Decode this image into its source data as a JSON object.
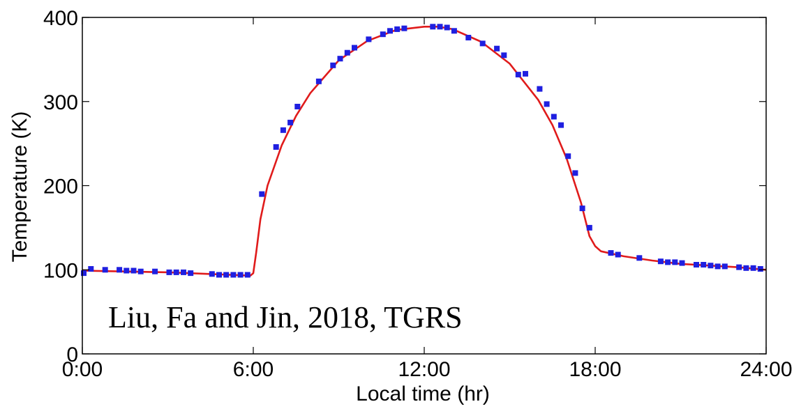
{
  "chart_data": {
    "type": "scatter",
    "xlabel": "Local time (hr)",
    "ylabel": "Temperature (K)",
    "xlim": [
      0,
      24
    ],
    "ylim": [
      0,
      400
    ],
    "xticks": [
      0,
      6,
      12,
      18,
      24
    ],
    "xtick_labels": [
      "0:00",
      "6:00",
      "12:00",
      "18:00",
      "24:00"
    ],
    "yticks": [
      0,
      100,
      200,
      300,
      400
    ],
    "ytick_labels": [
      "0",
      "100",
      "200",
      "300",
      "400"
    ],
    "grid": false,
    "annotation": "Liu, Fa and Jin, 2018, TGRS",
    "colors": {
      "points": "#1f1fe0",
      "line": "#e01b1b"
    },
    "series": [
      {
        "style": "markers",
        "x": [
          0.05,
          0.3,
          0.8,
          1.3,
          1.55,
          1.8,
          2.05,
          2.55,
          3.05,
          3.3,
          3.55,
          3.8,
          4.55,
          4.8,
          5.05,
          5.3,
          5.55,
          5.8,
          6.3,
          6.8,
          7.05,
          7.3,
          7.55,
          8.3,
          8.8,
          9.05,
          9.3,
          9.55,
          10.05,
          10.55,
          10.8,
          11.05,
          11.3,
          12.3,
          12.55,
          12.8,
          13.05,
          13.55,
          14.05,
          14.55,
          14.8,
          15.3,
          15.55,
          16.05,
          16.3,
          16.55,
          16.8,
          17.05,
          17.3,
          17.55,
          17.8,
          18.55,
          18.8,
          19.55,
          20.3,
          20.55,
          20.8,
          21.05,
          21.55,
          21.8,
          22.05,
          22.3,
          22.55,
          23.05,
          23.3,
          23.55,
          23.8
        ],
        "y": [
          96,
          101,
          100,
          100,
          99,
          99,
          98,
          98,
          97,
          97,
          97,
          96,
          95,
          94,
          94,
          94,
          94,
          94,
          190,
          246,
          266,
          275,
          294,
          324,
          343,
          351,
          358,
          364,
          374,
          380,
          384,
          386,
          387,
          389,
          389,
          388,
          384,
          376,
          369,
          363,
          355,
          332,
          333,
          315,
          297,
          282,
          272,
          235,
          215,
          173,
          150,
          120,
          118,
          114,
          110,
          109,
          109,
          108,
          106,
          106,
          105,
          104,
          104,
          103,
          102,
          102,
          101
        ]
      },
      {
        "style": "line",
        "x": [
          0,
          3,
          5.9,
          6.0,
          6.1,
          6.25,
          6.5,
          7,
          7.5,
          8,
          9,
          10,
          11,
          12,
          12.5,
          13,
          14,
          15,
          16,
          16.5,
          17,
          17.5,
          17.8,
          18.0,
          18.2,
          19,
          20,
          21,
          22,
          23,
          24
        ],
        "y": [
          99,
          97,
          93,
          96,
          120,
          160,
          200,
          248,
          283,
          310,
          349,
          372,
          385,
          389,
          389,
          386,
          371,
          345,
          302,
          272,
          232,
          180,
          140,
          128,
          122,
          116,
          111,
          107,
          105,
          103,
          100
        ]
      }
    ]
  }
}
